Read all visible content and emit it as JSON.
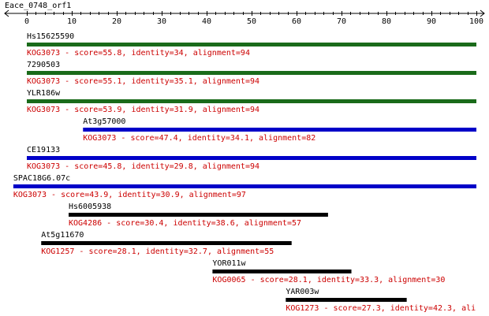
{
  "chart_data": {
    "type": "bar",
    "query": {
      "name": "Eace_0748_orf1",
      "range": [
        0,
        100
      ]
    },
    "axis": {
      "min": 0,
      "max": 100,
      "ticks": [
        0,
        10,
        20,
        30,
        40,
        50,
        60,
        70,
        80,
        90,
        100
      ]
    },
    "hits": [
      {
        "name": "Hs15625590",
        "start": 0,
        "end": 100,
        "color": "#1a6b1a",
        "desc": "KOG3073 - score=55.8, identity=34, alignment=94"
      },
      {
        "name": "7290503",
        "start": 0,
        "end": 100,
        "color": "#1a6b1a",
        "desc": "KOG3073 - score=55.1, identity=35.1, alignment=94"
      },
      {
        "name": "YLR186w",
        "start": 0,
        "end": 100,
        "color": "#1a6b1a",
        "desc": "KOG3073 - score=53.9, identity=31.9, alignment=94"
      },
      {
        "name": "At3g57000",
        "start": 12.5,
        "end": 100,
        "color": "#0000c8",
        "desc": "KOG3073 - score=47.4, identity=34.1, alignment=82"
      },
      {
        "name": "CE19133",
        "start": 0,
        "end": 100,
        "color": "#0000c8",
        "desc": "KOG3073 - score=45.8, identity=29.8, alignment=94"
      },
      {
        "name": "SPAC18G6.07c",
        "start": -3,
        "end": 100,
        "color": "#0000c8",
        "desc": "KOG3073 - score=43.9, identity=30.9, alignment=97"
      },
      {
        "name": "Hs6005938",
        "start": 9.3,
        "end": 67,
        "color": "#000000",
        "desc": "KOG4286 - score=30.4, identity=38.6, alignment=57"
      },
      {
        "name": "At5g11670",
        "start": 3.2,
        "end": 58.9,
        "color": "#000000",
        "desc": "KOG1257 - score=28.1, identity=32.7, alignment=55"
      },
      {
        "name": "YOR011w",
        "start": 41.3,
        "end": 72.2,
        "color": "#000000",
        "desc": "KOG0065 - score=28.1, identity=33.3, alignment=30"
      },
      {
        "name": "YAR003w",
        "start": 57.6,
        "end": 84.5,
        "color": "#000000",
        "desc": "KOG1273 - score=27.3, identity=42.3, ali"
      }
    ],
    "desc_color": "#cc0000"
  }
}
